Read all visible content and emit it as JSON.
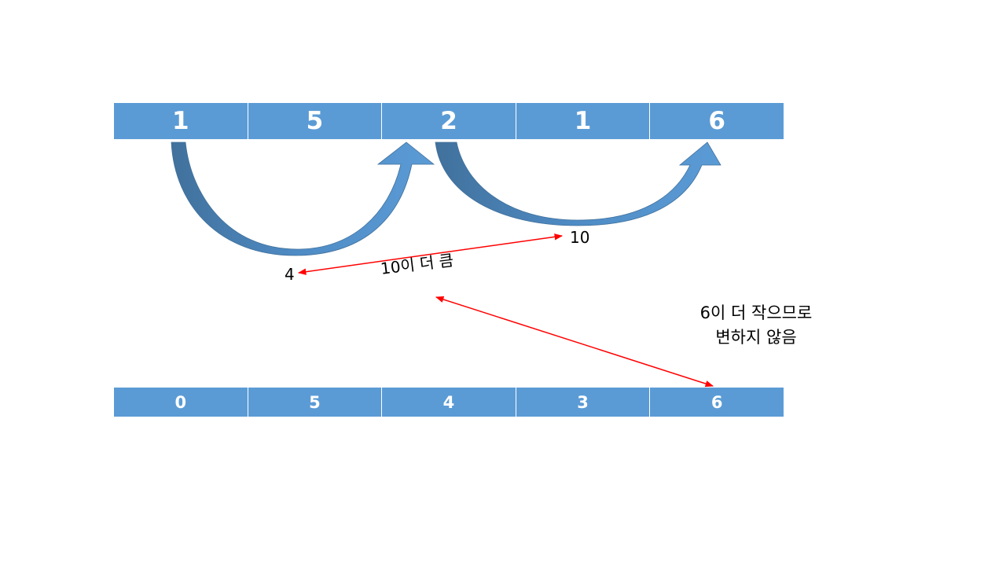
{
  "top_array": [
    "1",
    "5",
    "2",
    "1",
    "6"
  ],
  "bottom_array": [
    "0",
    "5",
    "4",
    "3",
    "6"
  ],
  "labels": {
    "path_sum_4": "4",
    "path_sum_10": "10",
    "compare_note": "10이 더 큼",
    "result_note_line1": "6이 더 작으므로",
    "result_note_line2": "변하지 않음"
  },
  "colors": {
    "cell_fill": "#5b9bd5",
    "arrow_light": "#5b9bd5",
    "arrow_dark": "#41719c",
    "connector": "#ff0000"
  }
}
